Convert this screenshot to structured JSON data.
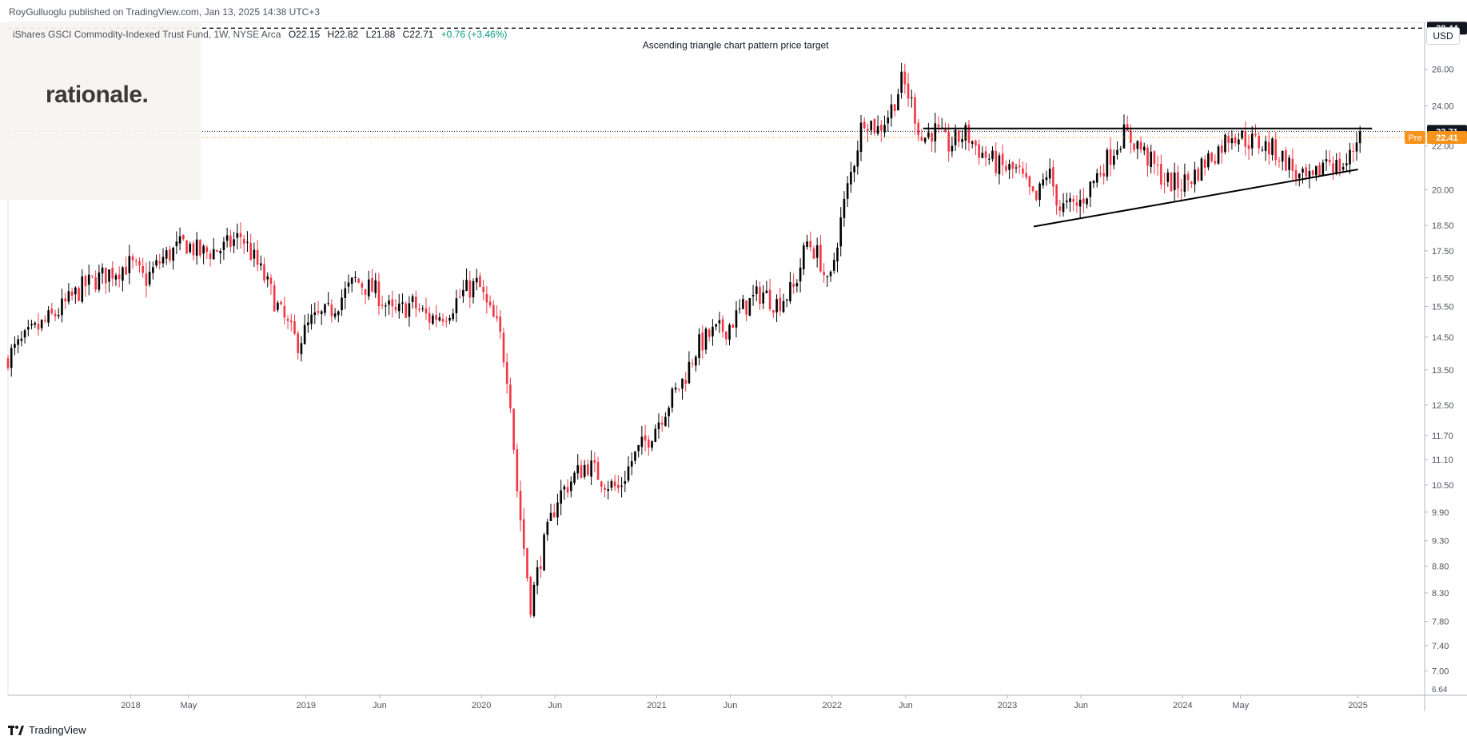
{
  "header": {
    "publisher": "RoyGulluoglu published on TradingView.com, Jan 13, 2025 14:38 UTC+3",
    "symbol_title": "iShares GSCI Commodity-Indexed Trust Fund, 1W, NYSE Arca",
    "open": "O22.15",
    "high": "H22.82",
    "low": "L21.88",
    "close": "C22.71",
    "change": "+0.76 (+3.46%)",
    "currency": "USD"
  },
  "logo": {
    "text": "rationale."
  },
  "brand": {
    "text": "TradingView"
  },
  "colors": {
    "up": "#089981",
    "down": "#f23645",
    "candle_up": "#000000",
    "candle_down": "#f23645",
    "pre": "#f7931a",
    "line": "#000000"
  },
  "chart_data": {
    "type": "candlestick",
    "scale": "log",
    "ylim": [
      6.64,
      28.8
    ],
    "y_ticks": [
      7.0,
      7.4,
      7.8,
      8.3,
      8.8,
      9.3,
      9.9,
      10.5,
      11.1,
      11.7,
      12.5,
      13.5,
      14.5,
      15.5,
      16.5,
      17.5,
      18.5,
      20.0,
      22.0,
      24.0,
      26.0
    ],
    "y_tick_labels": [
      "7.00",
      "7.40",
      "7.80",
      "8.30",
      "8.80",
      "9.30",
      "9.90",
      "10.50",
      "11.10",
      "11.70",
      "12.50",
      "13.50",
      "14.50",
      "15.50",
      "16.50",
      "17.50",
      "18.50",
      "20.00",
      "22.00",
      "24.00",
      "26.00"
    ],
    "x_labels": [
      {
        "label": "2018",
        "t": 2018.0
      },
      {
        "label": "May",
        "t": 2018.33
      },
      {
        "label": "2019",
        "t": 2019.0
      },
      {
        "label": "Jun",
        "t": 2019.42
      },
      {
        "label": "2020",
        "t": 2020.0
      },
      {
        "label": "Jun",
        "t": 2020.42
      },
      {
        "label": "2021",
        "t": 2021.0
      },
      {
        "label": "Jun",
        "t": 2021.42
      },
      {
        "label": "2022",
        "t": 2022.0
      },
      {
        "label": "Jun",
        "t": 2022.42
      },
      {
        "label": "2023",
        "t": 2023.0
      },
      {
        "label": "Jun",
        "t": 2023.42
      },
      {
        "label": "2024",
        "t": 2024.0
      },
      {
        "label": "May",
        "t": 2024.33
      },
      {
        "label": "2025",
        "t": 2025.0
      }
    ],
    "x_range": [
      2017.3,
      2025.38
    ],
    "price_markers": [
      {
        "label": "28.44",
        "value": 28.44,
        "style": "dark"
      },
      {
        "label": "22.71",
        "value": 22.71,
        "style": "dark"
      },
      {
        "label": "22.41",
        "value": 22.41,
        "style": "pre",
        "tag": "Pre"
      }
    ],
    "annotations": [
      {
        "text": "Ascending triangle chart pattern price target",
        "t": 2021.45,
        "value": 27.5
      }
    ],
    "target_level": 28.44,
    "resistance": {
      "from": [
        2022.52,
        22.85
      ],
      "to": [
        2025.08,
        22.85
      ]
    },
    "support": {
      "from": [
        2023.15,
        18.45
      ],
      "to": [
        2025.0,
        20.9
      ]
    },
    "last_close": 22.71,
    "pre_price": 22.41,
    "anchors": [
      [
        2017.3,
        13.8
      ],
      [
        2017.45,
        14.6
      ],
      [
        2017.6,
        15.3
      ],
      [
        2017.75,
        16.2
      ],
      [
        2017.9,
        16.7
      ],
      [
        2018.02,
        17.0
      ],
      [
        2018.1,
        16.4
      ],
      [
        2018.2,
        17.2
      ],
      [
        2018.33,
        17.8
      ],
      [
        2018.42,
        17.4
      ],
      [
        2018.55,
        17.6
      ],
      [
        2018.65,
        18.1
      ],
      [
        2018.78,
        16.5
      ],
      [
        2018.88,
        15.2
      ],
      [
        2018.97,
        14.3
      ],
      [
        2019.05,
        15.0
      ],
      [
        2019.15,
        15.3
      ],
      [
        2019.3,
        16.4
      ],
      [
        2019.42,
        16.0
      ],
      [
        2019.52,
        15.2
      ],
      [
        2019.62,
        15.6
      ],
      [
        2019.72,
        15.1
      ],
      [
        2019.82,
        15.3
      ],
      [
        2019.92,
        16.0
      ],
      [
        2020.0,
        16.3
      ],
      [
        2020.05,
        15.5
      ],
      [
        2020.12,
        14.7
      ],
      [
        2020.18,
        13.0
      ],
      [
        2020.22,
        10.5
      ],
      [
        2020.26,
        9.2
      ],
      [
        2020.3,
        8.1
      ],
      [
        2020.36,
        9.0
      ],
      [
        2020.45,
        10.2
      ],
      [
        2020.55,
        10.7
      ],
      [
        2020.62,
        11.0
      ],
      [
        2020.72,
        10.6
      ],
      [
        2020.8,
        10.4
      ],
      [
        2020.88,
        11.1
      ],
      [
        2020.98,
        11.7
      ],
      [
        2021.08,
        12.5
      ],
      [
        2021.17,
        13.2
      ],
      [
        2021.25,
        14.2
      ],
      [
        2021.33,
        14.6
      ],
      [
        2021.42,
        14.8
      ],
      [
        2021.52,
        15.5
      ],
      [
        2021.62,
        16.0
      ],
      [
        2021.7,
        15.6
      ],
      [
        2021.8,
        16.1
      ],
      [
        2021.88,
        17.9
      ],
      [
        2021.95,
        17.2
      ],
      [
        2022.0,
        16.0
      ],
      [
        2022.05,
        18.0
      ],
      [
        2022.1,
        19.8
      ],
      [
        2022.15,
        21.5
      ],
      [
        2022.2,
        23.5
      ],
      [
        2022.28,
        22.8
      ],
      [
        2022.35,
        23.7
      ],
      [
        2022.42,
        25.4
      ],
      [
        2022.48,
        24.0
      ],
      [
        2022.53,
        22.3
      ],
      [
        2022.6,
        22.8
      ],
      [
        2022.68,
        22.0
      ],
      [
        2022.78,
        22.6
      ],
      [
        2022.88,
        21.6
      ],
      [
        2022.98,
        21.0
      ],
      [
        2023.08,
        20.8
      ],
      [
        2023.18,
        19.4
      ],
      [
        2023.25,
        20.9
      ],
      [
        2023.32,
        19.2
      ],
      [
        2023.42,
        19.3
      ],
      [
        2023.52,
        20.5
      ],
      [
        2023.6,
        21.5
      ],
      [
        2023.68,
        22.6
      ],
      [
        2023.76,
        22.1
      ],
      [
        2023.84,
        21.2
      ],
      [
        2023.92,
        20.4
      ],
      [
        2024.0,
        20.2
      ],
      [
        2024.08,
        20.6
      ],
      [
        2024.15,
        21.3
      ],
      [
        2024.22,
        21.8
      ],
      [
        2024.3,
        22.7
      ],
      [
        2024.38,
        22.3
      ],
      [
        2024.46,
        22.1
      ],
      [
        2024.54,
        21.8
      ],
      [
        2024.62,
        21.2
      ],
      [
        2024.68,
        20.5
      ],
      [
        2024.76,
        20.3
      ],
      [
        2024.84,
        21.5
      ],
      [
        2024.9,
        21.0
      ],
      [
        2024.96,
        21.2
      ],
      [
        2025.03,
        22.71
      ]
    ]
  }
}
